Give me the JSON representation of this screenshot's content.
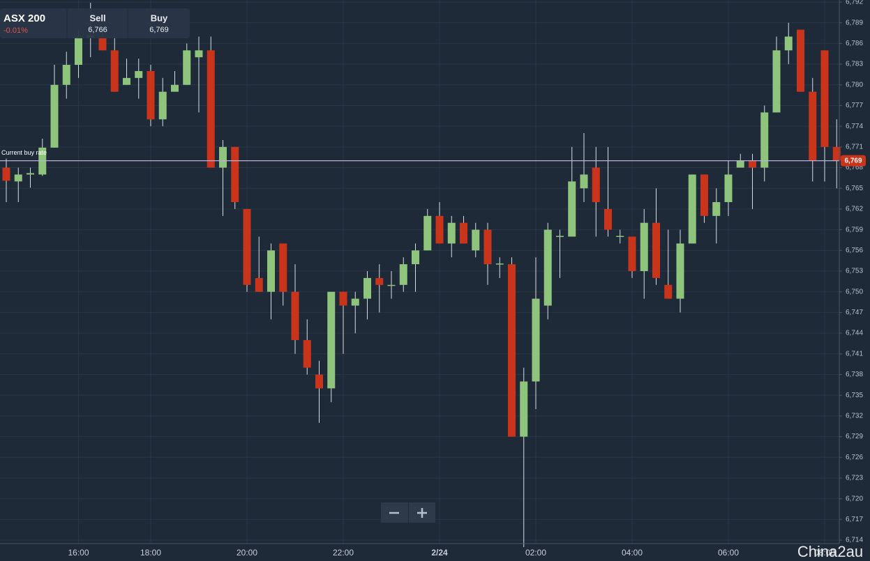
{
  "header": {
    "symbol": "ASX 200",
    "change": "-0.01%",
    "sell_label": "Sell",
    "sell_value": "6,766",
    "buy_label": "Buy",
    "buy_value": "6,769"
  },
  "watermark": "China2au",
  "chart_data": {
    "type": "candlestick",
    "categories": [
      null,
      null,
      null,
      null,
      null,
      null,
      "16:00",
      null,
      null,
      null,
      null,
      null,
      "18:00",
      null,
      null,
      null,
      null,
      null,
      null,
      null,
      "20:00",
      null,
      null,
      null,
      null,
      null,
      null,
      null,
      "22:00",
      null,
      null,
      null,
      null,
      null,
      null,
      null,
      "2/24",
      null,
      null,
      null,
      null,
      null,
      null,
      null,
      "02:00",
      null,
      null,
      null,
      null,
      null,
      null,
      null,
      "04:00",
      null,
      null,
      null,
      null,
      null,
      null,
      null,
      "06:00",
      null,
      null,
      null,
      null,
      null,
      null,
      null,
      "08:00",
      null
    ],
    "open": [
      6768.0,
      6766.0,
      6767.0,
      6767.0,
      6770.9,
      6780.0,
      6782.9,
      6786.8,
      6787,
      6785,
      6780,
      6781,
      6782,
      6775,
      6779,
      6780,
      6784,
      6785,
      6768,
      6771,
      6762,
      6752,
      6750,
      6757,
      6750,
      6743,
      6738,
      6736,
      6750,
      6748,
      6749,
      6752,
      6750.9,
      6751,
      6754,
      6756,
      6761,
      6757,
      6760,
      6756,
      6759,
      6754,
      6754,
      6729,
      6737,
      6748,
      6758,
      6758,
      6765,
      6768,
      6762,
      6758,
      6758,
      6753,
      6760,
      6751,
      6749,
      6757,
      6767,
      6761,
      6763,
      6768,
      6769,
      6768,
      6776,
      6785,
      6788,
      6779,
      6785,
      6771
    ],
    "high": [
      6769.3,
      6768.0,
      6768.0,
      6772.2,
      6782.9,
      6784.8,
      6788.0,
      6791.9,
      6788,
      6787,
      6783.8,
      6783.8,
      6782.9,
      6781,
      6782,
      6786,
      6787,
      6787,
      6772,
      6771,
      6762,
      6758,
      6757,
      6757,
      6754,
      6746,
      6740,
      6750,
      6750,
      6750,
      6753,
      6754,
      6753,
      6755,
      6757,
      6762,
      6763,
      6761,
      6761,
      6760,
      6760,
      6755,
      6755,
      6739,
      6755,
      6760,
      6759,
      6771,
      6773,
      6771,
      6771,
      6759,
      6758,
      6762,
      6765,
      6759,
      6759,
      6767,
      6767,
      6765,
      6769,
      6770,
      6770,
      6777,
      6787,
      6789,
      6788,
      6781,
      6785,
      6775
    ],
    "low": [
      6763.0,
      6763.0,
      6765.1,
      6766.8,
      6770.9,
      6778.0,
      6781.0,
      6784.0,
      6785,
      6779,
      6780,
      6778,
      6774,
      6774,
      6779,
      6780,
      6776,
      6768,
      6761,
      6762,
      6750,
      6750,
      6746,
      6748,
      6741,
      6738,
      6731,
      6734,
      6741,
      6744,
      6746,
      6747,
      6749,
      6750,
      6750,
      6756,
      6757,
      6755,
      6757,
      6755,
      6751,
      6752,
      6729,
      6713,
      6733,
      6746,
      6752,
      6758,
      6763,
      6758,
      6758,
      6757,
      6752,
      6749,
      6751,
      6749,
      6747,
      6757,
      6760,
      6757,
      6761,
      6768,
      6762,
      6766,
      6776,
      6783,
      6779,
      6766,
      6766,
      6765
    ],
    "close": [
      6766.1,
      6767.0,
      6767.2,
      6770.9,
      6780.0,
      6782.9,
      6787.0,
      6787.2,
      6785,
      6779,
      6781,
      6782,
      6775,
      6779,
      6780,
      6785,
      6785,
      6768,
      6771,
      6763,
      6751,
      6750,
      6756,
      6750,
      6743,
      6739,
      6736,
      6750,
      6748,
      6749,
      6752,
      6751,
      6751.0,
      6754,
      6756,
      6761,
      6757,
      6760,
      6757,
      6759,
      6754,
      6754.1,
      6729,
      6737,
      6749,
      6759,
      6758.1,
      6766,
      6767,
      6763,
      6759,
      6758.1,
      6753,
      6760,
      6752,
      6749,
      6757,
      6767,
      6761,
      6763,
      6767,
      6769,
      6768,
      6776,
      6785,
      6787,
      6779,
      6769,
      6771,
      6769
    ],
    "up_color": "#8fc47c",
    "down_color": "#c9341b",
    "ylim": [
      6713.5,
      6792.3
    ],
    "yticks": [
      {
        "value": 6714,
        "label": "6,714"
      },
      {
        "value": 6717,
        "label": "6,717"
      },
      {
        "value": 6720,
        "label": "6,720"
      },
      {
        "value": 6723,
        "label": "6,723"
      },
      {
        "value": 6726,
        "label": "6,726"
      },
      {
        "value": 6729,
        "label": "6,729"
      },
      {
        "value": 6732,
        "label": "6,732"
      },
      {
        "value": 6735,
        "label": "6,735"
      },
      {
        "value": 6738,
        "label": "6,738"
      },
      {
        "value": 6741,
        "label": "6,741"
      },
      {
        "value": 6744,
        "label": "6,744"
      },
      {
        "value": 6747,
        "label": "6,747"
      },
      {
        "value": 6750,
        "label": "6,750"
      },
      {
        "value": 6753,
        "label": "6,753"
      },
      {
        "value": 6756,
        "label": "6,756"
      },
      {
        "value": 6759,
        "label": "6,759"
      },
      {
        "value": 6762,
        "label": "6,762"
      },
      {
        "value": 6765,
        "label": "6,765"
      },
      {
        "value": 6768,
        "label": "6,768"
      },
      {
        "value": 6771,
        "label": "6,771"
      },
      {
        "value": 6774,
        "label": "6,774"
      },
      {
        "value": 6777,
        "label": "6,777"
      },
      {
        "value": 6780,
        "label": "6,780"
      },
      {
        "value": 6783,
        "label": "6,783"
      },
      {
        "value": 6786,
        "label": "6,786"
      },
      {
        "value": 6789,
        "label": "6,789"
      },
      {
        "value": 6792,
        "label": "6,792"
      }
    ],
    "grid": true,
    "reference_line": {
      "label": "Current buy rate",
      "value": 6769,
      "value_label": "6,769",
      "color": "#b8b0d8",
      "badge_color": "#c9341b"
    }
  }
}
